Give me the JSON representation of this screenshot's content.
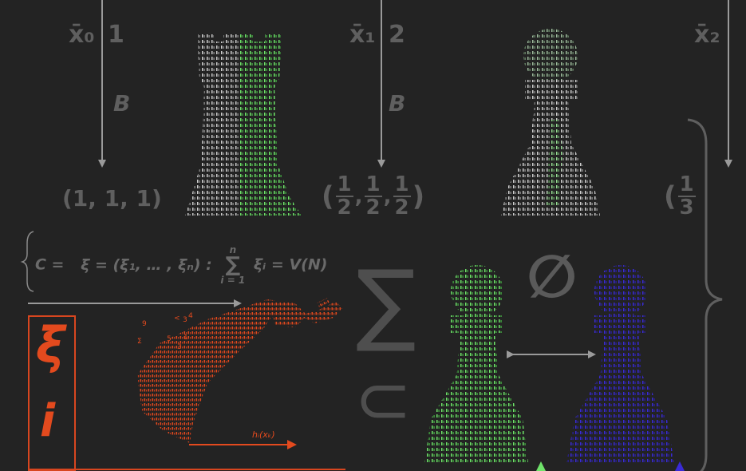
{
  "labels": {
    "xbar0": "x̄₀",
    "xbar0_idx": "1",
    "xbar1": "x̄₁",
    "xbar1_idx": "2",
    "xbar2": "x̄₂",
    "b1": "B",
    "b2": "B",
    "tuple1": "(1, 1, 1)",
    "frac_num": "1",
    "frac_den": "2",
    "frac3_den": "3",
    "set_eq_lhs": "C =",
    "set_eq_body": "ξ = (ξ₁, … , ξₙ) :",
    "sum_top": "n",
    "sum_sym": "∑",
    "sum_bot": "i = 1",
    "set_eq_rhs": "ξᵢ = V(N)",
    "xi_main": "ξ",
    "xi_sub": "i",
    "h_label": "hᵢ(xₖ)",
    "big_sigma": "∑",
    "empty_set": "∅",
    "subset": "⊂",
    "scatter_digits": [
      "9",
      "<",
      "3",
      "4",
      "Σ",
      "5",
      "1",
      "3"
    ]
  },
  "colors": {
    "background": "#232323",
    "gray_text": "#5f5f5f",
    "white_ascii": "#cfcfcf",
    "green_ascii": "#6fe36a",
    "blue_ascii": "#3a2bd6",
    "orange": "#e34a1e"
  },
  "figures": [
    "rook-half-green",
    "pawn-gray",
    "pawn-green",
    "pawn-blue",
    "king-orange-fallen"
  ]
}
